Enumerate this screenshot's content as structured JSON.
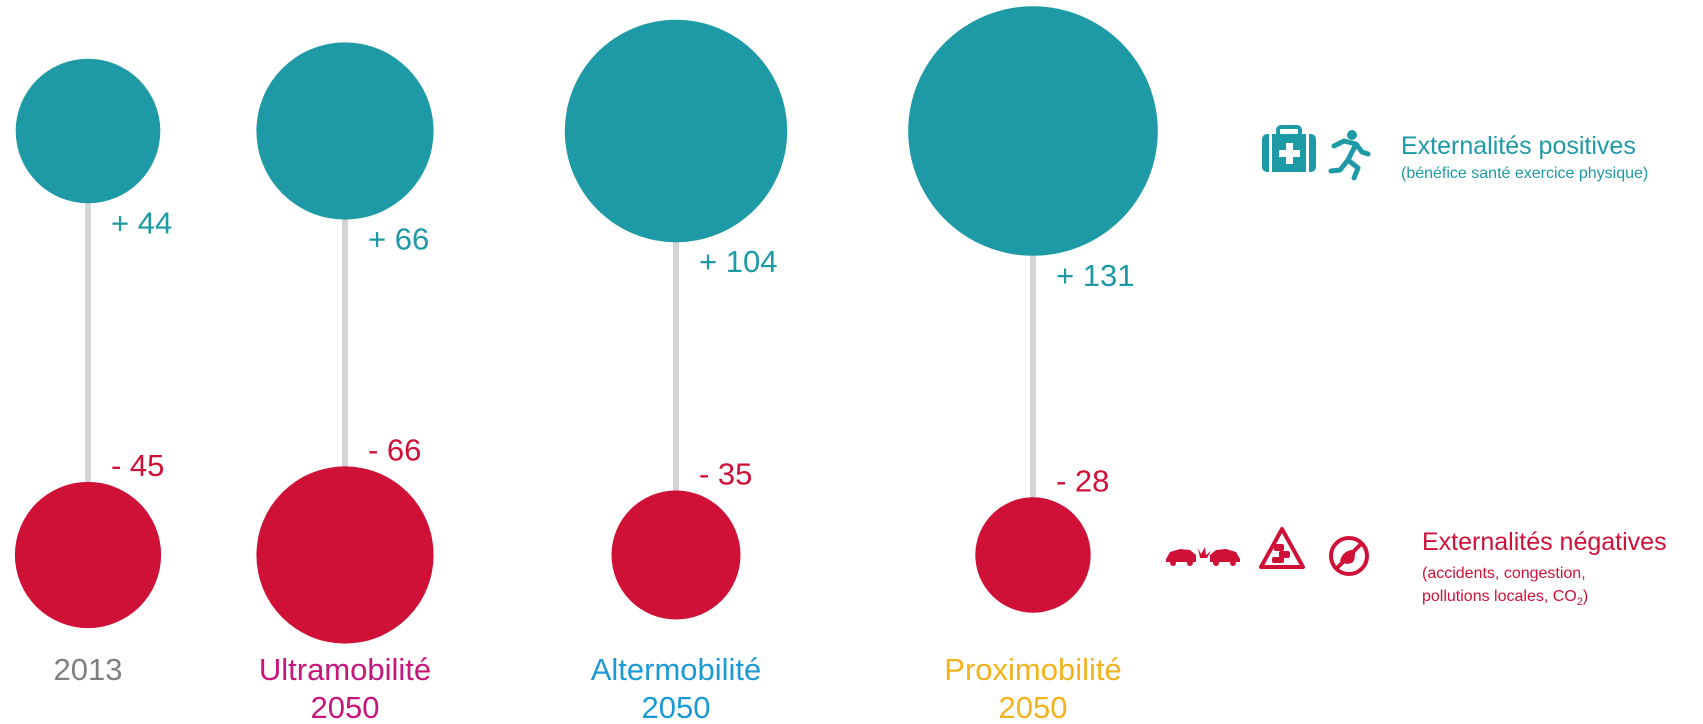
{
  "colors": {
    "positive": "#1e9aa6",
    "negative": "#cf1138",
    "stem": "#d4d4d4",
    "grey": "#808080",
    "magenta": "#c8157b",
    "blue": "#1c9ad6",
    "yellow": "#f4b21c"
  },
  "chart_data": {
    "type": "bubble-pairs",
    "title": "",
    "scenarios": [
      {
        "label_line1": "2013",
        "label_line2": "",
        "label_color": "grey",
        "positive": 44,
        "positive_text": "+ 44",
        "negative": -45,
        "negative_text": "- 45"
      },
      {
        "label_line1": "Ultramobilité",
        "label_line2": "2050",
        "label_color": "magenta",
        "positive": 66,
        "positive_text": "+ 66",
        "negative": -66,
        "negative_text": "- 66"
      },
      {
        "label_line1": "Altermobilité",
        "label_line2": "2050",
        "label_color": "blue",
        "positive": 104,
        "positive_text": "+ 104",
        "negative": -35,
        "negative_text": "- 35"
      },
      {
        "label_line1": "Proximobilité",
        "label_line2": "2050",
        "label_color": "yellow",
        "positive": 131,
        "positive_text": "+ 131",
        "negative": -28,
        "negative_text": "- 28"
      }
    ],
    "legend": {
      "positive": {
        "title": "Externalités positives",
        "subtitle": "(bénéfice santé exercice physique)",
        "icons": [
          "first-aid-kit-icon",
          "running-person-icon"
        ]
      },
      "negative": {
        "title": "Externalités négatives",
        "subtitle_line1": "(accidents, congestion,",
        "subtitle_line2_main": "pollutions locales, CO",
        "subtitle_line2_sub": "2",
        "subtitle_line2_end": ")",
        "icons": [
          "car-crash-icon",
          "traffic-jam-warning-icon",
          "no-pollution-icon"
        ]
      }
    }
  }
}
